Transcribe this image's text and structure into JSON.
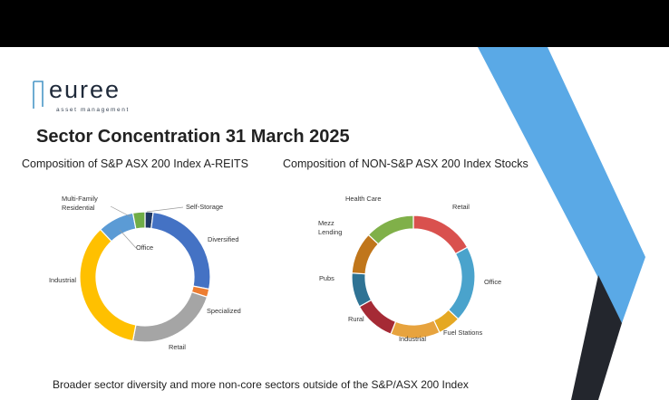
{
  "logo": {
    "name": "euree",
    "tagline": "asset management"
  },
  "title": "Sector Concentration 31 March 2025",
  "footer": "Broader sector diversity and more non-core sectors outside of the S&P/ASX 200 Index",
  "chart_data": [
    {
      "type": "pie",
      "title": "Composition of S&P ASX 200 Index A-REITS",
      "categories": [
        "Self-Storage",
        "Diversified",
        "Specialized",
        "Retail",
        "Industrial",
        "Office",
        "Multi-Family Residential"
      ],
      "values": [
        2,
        26,
        2,
        23,
        35,
        9,
        3
      ],
      "colors": [
        "#1f3864",
        "#4472c4",
        "#ed7d31",
        "#a5a5a5",
        "#ffc000",
        "#5b9bd5",
        "#70ad47"
      ]
    },
    {
      "type": "pie",
      "title": "Composition of NON-S&P ASX 200 Index Stocks",
      "categories": [
        "Retail",
        "Office",
        "Fuel Stations",
        "Industrial",
        "Rural",
        "Pubs",
        "Mezz Lending",
        "Health Care"
      ],
      "values": [
        17,
        20,
        6,
        13,
        11,
        9,
        11,
        13
      ],
      "colors": [
        "#d9514e",
        "#4aa3cc",
        "#e5a823",
        "#e7a33e",
        "#a52a35",
        "#2f7394",
        "#c0761b",
        "#80b049"
      ]
    }
  ]
}
